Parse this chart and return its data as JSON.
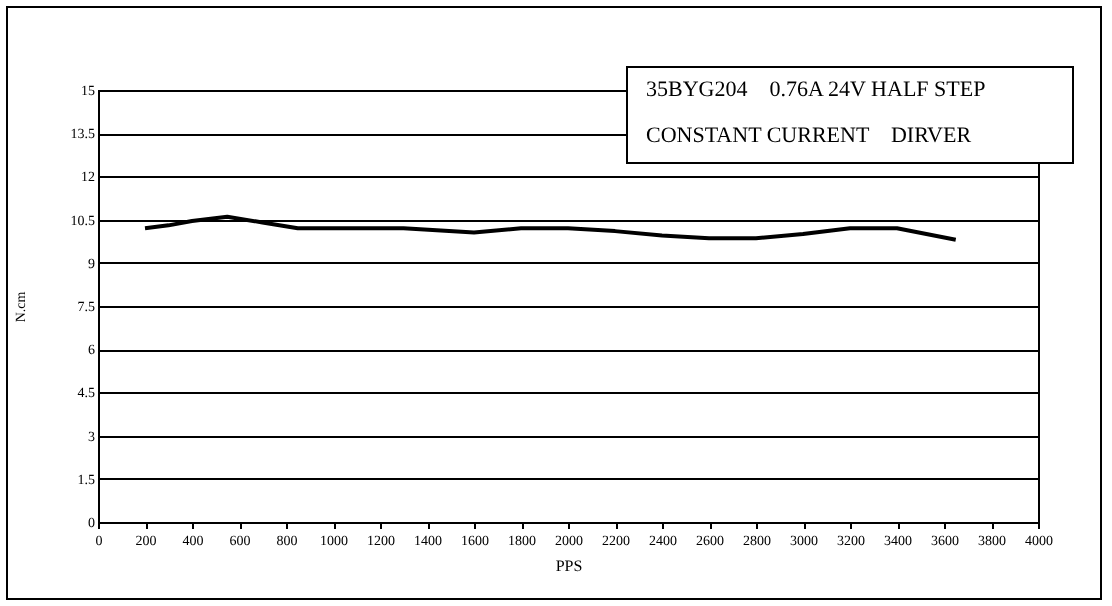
{
  "chart_data": {
    "type": "line",
    "title": "35BYG204    0.76A 24V HALF STEP",
    "subtitle": "CONSTANT CURRENT    DIRVER",
    "xlabel": "PPS",
    "ylabel": "N.cm",
    "series": [
      {
        "color": "#000000",
        "x": [
          200,
          300,
          400,
          550,
          700,
          850,
          1000,
          1300,
          1600,
          1800,
          2000,
          2200,
          2400,
          2600,
          2800,
          3000,
          3200,
          3400,
          3650
        ],
        "values": [
          10.2,
          10.3,
          10.45,
          10.6,
          10.4,
          10.2,
          10.2,
          10.2,
          10.05,
          10.2,
          10.2,
          10.1,
          9.95,
          9.85,
          9.85,
          10.0,
          10.2,
          10.2,
          9.8
        ]
      }
    ],
    "xlim": [
      0,
      4000
    ],
    "xticks": [
      0,
      200,
      400,
      600,
      800,
      1000,
      1200,
      1400,
      1600,
      1800,
      2000,
      2200,
      2400,
      2600,
      2800,
      3000,
      3200,
      3400,
      3600,
      3800,
      4000
    ],
    "ylim": [
      0,
      15
    ],
    "yticks": [
      0,
      1.5,
      3,
      4.5,
      6,
      7.5,
      9,
      10.5,
      12,
      13.5,
      15
    ],
    "grid": "y",
    "marker": "none",
    "line_style": "solid"
  }
}
